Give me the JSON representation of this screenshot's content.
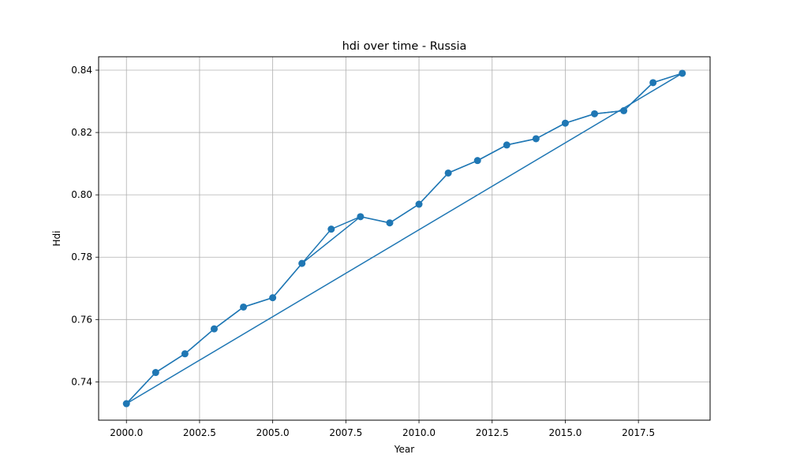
{
  "chart_data": {
    "type": "line",
    "title": "hdi over time - Russia",
    "xlabel": "Year",
    "ylabel": "Hdi",
    "xlim": [
      1999.05,
      2019.95
    ],
    "ylim": [
      0.7277,
      0.8443
    ],
    "grid": true,
    "x_ticks": [
      2000.0,
      2002.5,
      2005.0,
      2007.5,
      2010.0,
      2012.5,
      2015.0,
      2017.5
    ],
    "x_tick_labels": [
      "2000.0",
      "2002.5",
      "2005.0",
      "2007.5",
      "2010.0",
      "2012.5",
      "2015.0",
      "2017.5"
    ],
    "y_ticks": [
      0.74,
      0.76,
      0.78,
      0.8,
      0.82,
      0.84
    ],
    "y_tick_labels": [
      "0.74",
      "0.76",
      "0.78",
      "0.80",
      "0.82",
      "0.84"
    ],
    "line_color": "#1f77b4",
    "series": [
      {
        "x": [
          2000,
          2001,
          2002,
          2003,
          2004,
          2005,
          2006,
          2007,
          2008,
          2009,
          2010,
          2011,
          2012,
          2013,
          2014,
          2015,
          2016,
          2017,
          2018,
          2019
        ],
        "values": [
          0.733,
          0.743,
          0.749,
          0.757,
          0.764,
          0.767,
          0.778,
          0.789,
          0.793,
          0.791,
          0.797,
          0.807,
          0.811,
          0.816,
          0.818,
          0.823,
          0.826,
          0.827,
          0.836,
          0.839
        ],
        "markers": true
      },
      {
        "x": [
          2000,
          2001,
          2002,
          2003,
          2004,
          2005,
          2006,
          2008,
          2009,
          2010,
          2011,
          2012,
          2013,
          2014,
          2015,
          2016,
          2017,
          2018,
          2019
        ],
        "values": [
          0.733,
          0.743,
          0.749,
          0.757,
          0.764,
          0.767,
          0.778,
          0.793,
          0.791,
          0.797,
          0.807,
          0.811,
          0.816,
          0.818,
          0.823,
          0.826,
          0.827,
          0.836,
          0.839
        ],
        "markers": false
      },
      {
        "x": [
          2000,
          2019
        ],
        "values": [
          0.733,
          0.839
        ],
        "markers": false
      }
    ]
  }
}
